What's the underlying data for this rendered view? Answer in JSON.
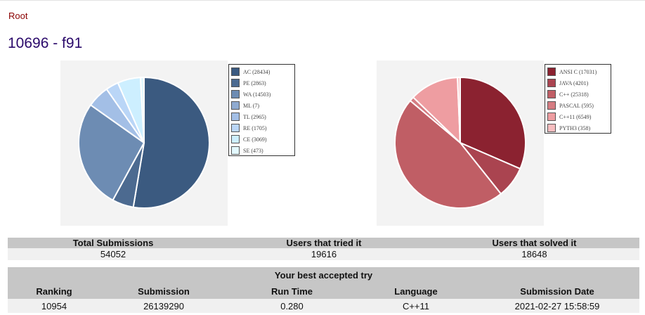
{
  "breadcrumb": "Root",
  "title": "10696 - f91",
  "colors": {
    "verdict": [
      "#3b5a80",
      "#4c6a90",
      "#6d8cb3",
      "#8faad0",
      "#a3bfe6",
      "#bad6f7",
      "#cdefff",
      "#e3f9ff"
    ],
    "language": [
      "#8b2230",
      "#aa4450",
      "#c05e65",
      "#d57c82",
      "#ee9da1",
      "#f7bdbf"
    ]
  },
  "chart_data": [
    {
      "type": "pie",
      "series": [
        {
          "label": "AC",
          "value": 28434
        },
        {
          "label": "PE",
          "value": 2863
        },
        {
          "label": "WA",
          "value": 14503
        },
        {
          "label": "ML",
          "value": 7
        },
        {
          "label": "TL",
          "value": 2965
        },
        {
          "label": "RE",
          "value": 1705
        },
        {
          "label": "CE",
          "value": 3069
        },
        {
          "label": "SE",
          "value": 473
        }
      ],
      "legend": [
        "AC (28434)",
        "PE (2863)",
        "WA (14503)",
        "ML (7)",
        "TL (2965)",
        "RE (1705)",
        "CE (3069)",
        "SE (473)"
      ],
      "legend_position": "right"
    },
    {
      "type": "pie",
      "series": [
        {
          "label": "ANSI C",
          "value": 17031
        },
        {
          "label": "JAVA",
          "value": 4201
        },
        {
          "label": "C++",
          "value": 25318
        },
        {
          "label": "PASCAL",
          "value": 595
        },
        {
          "label": "C++11",
          "value": 6549
        },
        {
          "label": "PYTH3",
          "value": 358
        }
      ],
      "legend": [
        "ANSI C (17031)",
        "JAVA (4201)",
        "C++ (25318)",
        "PASCAL (595)",
        "C++11 (6549)",
        "PYTH3 (358)"
      ],
      "legend_position": "right"
    }
  ],
  "stats": {
    "headers": [
      "Total Submissions",
      "Users that tried it",
      "Users that solved it"
    ],
    "values": [
      "54052",
      "19616",
      "18648"
    ]
  },
  "best": {
    "caption": "Your best accepted try",
    "headers": [
      "Ranking",
      "Submission",
      "Run Time",
      "Language",
      "Submission Date"
    ],
    "values": [
      "10954",
      "26139290",
      "0.280",
      "C++11",
      "2021-02-27 15:58:59"
    ]
  }
}
